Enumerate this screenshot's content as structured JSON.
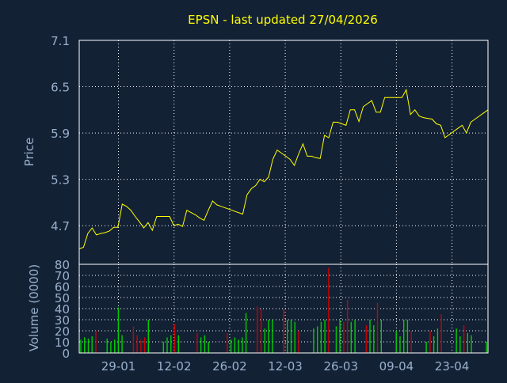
{
  "colors": {
    "background": "#132135",
    "plot_border": "#ffffff",
    "grid": "#ffffff",
    "axis_text": "#99b0cc",
    "title": "#ffff00",
    "price_line": "#ffff00",
    "volume_up": "#00cc00",
    "volume_down": "#cc0000"
  },
  "chart_data": [
    {
      "type": "line",
      "title": "EPSN - last updated 27/04/2026",
      "ylabel": "Price",
      "ylim": [
        4.2,
        7.1
      ],
      "yticks": [
        "7.1",
        "6.5",
        "5.9",
        "5.3",
        "4.7"
      ],
      "ytick_values": [
        7.1,
        6.5,
        5.9,
        5.3,
        4.7
      ],
      "grid": true,
      "series": [
        {
          "values": [
            4.4,
            4.42,
            4.6,
            4.67,
            4.58,
            4.6,
            4.61,
            4.63,
            4.68,
            4.68,
            4.98,
            4.95,
            4.9,
            4.82,
            4.75,
            4.67,
            4.74,
            4.64,
            4.82,
            4.82,
            4.82,
            4.82,
            4.7,
            4.72,
            4.69,
            4.9,
            4.87,
            4.84,
            4.8,
            4.77,
            4.9,
            5.02,
            4.97,
            4.95,
            4.93,
            4.91,
            4.89,
            4.87,
            4.85,
            5.1,
            5.18,
            5.22,
            5.3,
            5.27,
            5.33,
            5.56,
            5.68,
            5.64,
            5.6,
            5.56,
            5.48,
            5.63,
            5.76,
            5.6,
            5.6,
            5.58,
            5.57,
            5.87,
            5.84,
            6.04,
            6.04,
            6.02,
            6.0,
            6.2,
            6.2,
            6.05,
            6.24,
            6.28,
            6.32,
            6.17,
            6.17,
            6.36,
            6.36,
            6.36,
            6.36,
            6.36,
            6.46,
            6.14,
            6.2,
            6.12,
            6.1,
            6.09,
            6.08,
            6.02,
            6.0,
            5.84,
            5.88,
            5.92,
            5.96,
            6.0,
            5.9,
            6.04,
            6.08,
            6.12,
            6.16,
            6.2
          ]
        }
      ]
    },
    {
      "type": "bar",
      "ylabel": "Volume (0000)",
      "ylim": [
        0,
        80
      ],
      "yticks": [
        "80",
        "70",
        "60",
        "50",
        "40",
        "30",
        "20",
        "10",
        "0"
      ],
      "ytick_values": [
        80,
        70,
        60,
        50,
        40,
        30,
        20,
        10,
        0
      ],
      "grid": true,
      "xticks": [
        "29-01",
        "12-02",
        "26-02",
        "12-03",
        "26-03",
        "09-04",
        "23-04"
      ],
      "xtick_positions": [
        9.6,
        23.2,
        36.8,
        50.4,
        64.0,
        77.6,
        91.2
      ],
      "series": [
        {
          "values": [
            12,
            14,
            13,
            15,
            20,
            0,
            0,
            13,
            10,
            12,
            41,
            16,
            0,
            0,
            24,
            16,
            12,
            14,
            30,
            0,
            0,
            0,
            10,
            14,
            16,
            26,
            16,
            0,
            0,
            0,
            0,
            18,
            14,
            16,
            10,
            0,
            0,
            0,
            0,
            18,
            12,
            14,
            12,
            14,
            36,
            0,
            0,
            42,
            40,
            22,
            30,
            30,
            0,
            0,
            40,
            30,
            30,
            28,
            20,
            0,
            0,
            0,
            22,
            24,
            28,
            30,
            77,
            0,
            24,
            30,
            28,
            48,
            28,
            30,
            0,
            0,
            25,
            30,
            25,
            45,
            30,
            0,
            0,
            0,
            20,
            15,
            30,
            30,
            20,
            0,
            0,
            0,
            10,
            20,
            15,
            22,
            35,
            0,
            0,
            0,
            22,
            15,
            25,
            18,
            16,
            0,
            0,
            0,
            10
          ],
          "direction": [
            "u",
            "u",
            "u",
            "u",
            "d",
            "u",
            "u",
            "u",
            "u",
            "u",
            "u",
            "u",
            "u",
            "u",
            "d",
            "d",
            "d",
            "d",
            "u",
            "u",
            "u",
            "u",
            "u",
            "u",
            "u",
            "d",
            "u",
            "u",
            "u",
            "u",
            "u",
            "d",
            "u",
            "u",
            "u",
            "u",
            "u",
            "u",
            "u",
            "d",
            "u",
            "u",
            "u",
            "u",
            "u",
            "u",
            "u",
            "d",
            "d",
            "u",
            "u",
            "u",
            "u",
            "u",
            "d",
            "u",
            "u",
            "u",
            "d",
            "u",
            "u",
            "u",
            "u",
            "u",
            "u",
            "u",
            "d",
            "u",
            "u",
            "u",
            "d",
            "d",
            "u",
            "u",
            "u",
            "u",
            "d",
            "u",
            "u",
            "d",
            "u",
            "u",
            "u",
            "u",
            "u",
            "u",
            "u",
            "u",
            "d",
            "u",
            "u",
            "u",
            "u",
            "d",
            "u",
            "u",
            "d",
            "u",
            "u",
            "u",
            "u",
            "u",
            "d",
            "u",
            "u",
            "u",
            "u",
            "u",
            "u"
          ]
        }
      ]
    }
  ]
}
